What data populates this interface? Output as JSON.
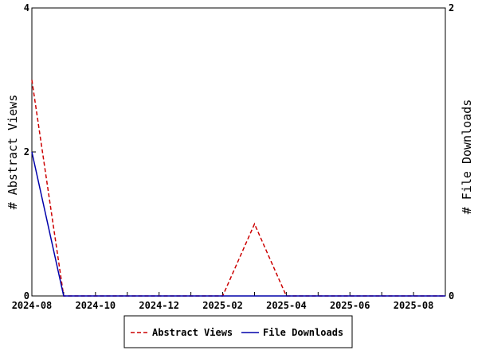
{
  "chart_data": {
    "type": "line",
    "x_dates": [
      "2024-08",
      "2024-09",
      "2024-10",
      "2024-11",
      "2024-12",
      "2025-01",
      "2025-02",
      "2025-03",
      "2025-04",
      "2025-05",
      "2025-06",
      "2025-07",
      "2025-08",
      "2025-09"
    ],
    "x_tick_labels": [
      "2024-08",
      "2024-10",
      "2024-12",
      "2025-02",
      "2025-04",
      "2025-06",
      "2025-08"
    ],
    "x_tick_indices": [
      0,
      2,
      4,
      6,
      8,
      10,
      12
    ],
    "series": [
      {
        "name": "Abstract Views",
        "axis": "left",
        "color": "#cc0000",
        "dash": "dashed",
        "values": [
          3,
          0,
          0,
          0,
          0,
          0,
          0,
          1,
          0,
          0,
          0,
          0,
          0,
          0
        ]
      },
      {
        "name": "File Downloads",
        "axis": "right",
        "color": "#0000aa",
        "dash": "solid",
        "values": [
          1,
          0,
          0,
          0,
          0,
          0,
          0,
          0,
          0,
          0,
          0,
          0,
          0,
          0
        ]
      }
    ],
    "y_left": {
      "label": "# Abstract Views",
      "range": [
        0,
        4
      ],
      "ticks": [
        0,
        2,
        4
      ]
    },
    "y_right": {
      "label": "# File Downloads",
      "range": [
        0,
        2
      ],
      "ticks": [
        0,
        2
      ]
    },
    "grid": false,
    "legend_placement": "bottom-center"
  },
  "legend": {
    "items": [
      {
        "label": "Abstract Views"
      },
      {
        "label": "File Downloads"
      }
    ]
  }
}
